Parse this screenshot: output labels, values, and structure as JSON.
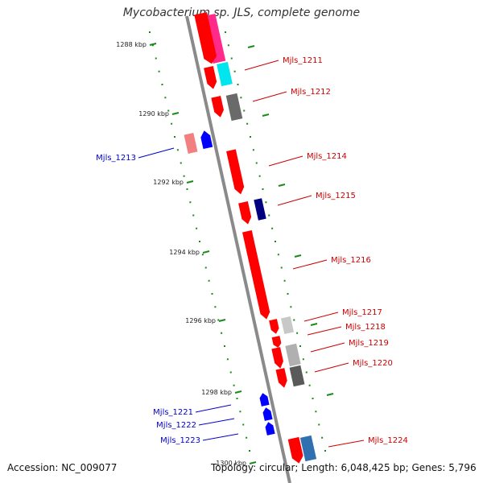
{
  "header": {
    "title": "Mycobacterium sp. JLS, complete genome"
  },
  "footer": {
    "accession": "Accession: NC_009077",
    "stats": "Topology: circular; Length: 6,048,425 bp; Genes: 5,796"
  },
  "colors": {
    "backbone": "#8a8a8a",
    "tick": "#1a8a1a",
    "forward_label": "#cc0000",
    "reverse_label": "#0000cc",
    "gene_red": "#ff0000"
  },
  "scale": {
    "ticks": [
      "1288 kbp",
      "1290 kbp",
      "1292 kbp",
      "1294 kbp",
      "1296 kbp",
      "1298 kbp",
      "1300 kbp"
    ]
  },
  "genes": {
    "forward": [
      {
        "label": "Mjls_1211",
        "color": "#ff0000"
      },
      {
        "label": "Mjls_1212",
        "color": "#ff0000"
      },
      {
        "label": "Mjls_1214",
        "color": "#ff0000"
      },
      {
        "label": "Mjls_1215",
        "color": "#ff0000"
      },
      {
        "label": "Mjls_1216",
        "color": "#ff0000"
      },
      {
        "label": "Mjls_1217",
        "color": "#ff0000"
      },
      {
        "label": "Mjls_1218",
        "color": "#ff0000"
      },
      {
        "label": "Mjls_1219",
        "color": "#ff0000"
      },
      {
        "label": "Mjls_1220",
        "color": "#ff0000"
      },
      {
        "label": "Mjls_1224",
        "color": "#ff0000"
      }
    ],
    "reverse": [
      {
        "label": "Mjls_1213",
        "color": "#0000ff"
      },
      {
        "label": "Mjls_1221",
        "color": "#0000ff"
      },
      {
        "label": "Mjls_1222",
        "color": "#0000ff"
      },
      {
        "label": "Mjls_1223",
        "color": "#0000ff"
      }
    ]
  },
  "features": {
    "colors": [
      "#ff2a8a",
      "#00e5ee",
      "#6a6a6a",
      "#f28080",
      "#000080",
      "#c8c8c8",
      "#b0b0b0",
      "#5a5a5a",
      "#3070b0"
    ]
  }
}
